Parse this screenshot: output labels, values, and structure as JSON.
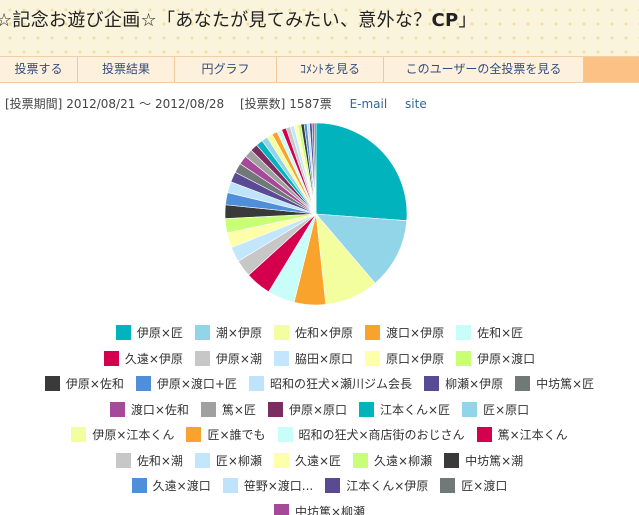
{
  "page_title_pre": "☆記念お遊び企画☆「あなたが見てみたい、意外な？",
  "page_title_bold": "CP",
  "page_title_post": "」",
  "tabs": [
    {
      "label": "投票する",
      "name": "tab-vote"
    },
    {
      "label": "投票結果",
      "name": "tab-results"
    },
    {
      "label": "円グラフ",
      "name": "tab-pie-chart"
    },
    {
      "label": "ｺﾒﾝﾄを見る",
      "name": "tab-comments"
    },
    {
      "label": "このユーザーの全投票を見る",
      "name": "tab-all-votes"
    }
  ],
  "info": {
    "period_label": "[投票期間]",
    "period_value": "2012/08/21 〜 2012/08/28",
    "count_label": "[投票数]",
    "count_value": "1587票",
    "email_link": "E-mail",
    "site_link": "site"
  },
  "chart_data": {
    "type": "pie",
    "title": "",
    "total": 1587,
    "slices": [
      {
        "label": "伊原×匠",
        "value": 412,
        "color": "#00b3bd"
      },
      {
        "label": "潮×伊原",
        "value": 198,
        "color": "#92d4e8"
      },
      {
        "label": "佐和×伊原",
        "value": 150,
        "color": "#f3ff9f"
      },
      {
        "label": "渡口×伊原",
        "value": 88,
        "color": "#faa32c"
      },
      {
        "label": "佐和×匠",
        "value": 76,
        "color": "#c8fdf9"
      },
      {
        "label": "久遠×伊原",
        "value": 72,
        "color": "#d4004e"
      },
      {
        "label": "伊原×潮",
        "value": 48,
        "color": "#c7c7c7"
      },
      {
        "label": "脇田×原口",
        "value": 42,
        "color": "#c2e6fb"
      },
      {
        "label": "原口×伊原",
        "value": 42,
        "color": "#fdffa9"
      },
      {
        "label": "伊原×渡口",
        "value": 40,
        "color": "#c9ff76"
      },
      {
        "label": "伊原×佐和",
        "value": 38,
        "color": "#3a3a3a"
      },
      {
        "label": "伊原×渡口+匠",
        "value": 34,
        "color": "#4f8fd9"
      },
      {
        "label": "昭和の狂犬×瀬川ジム会長",
        "value": 31,
        "color": "#bfe3fb"
      },
      {
        "label": "柳瀬×伊原",
        "value": 29,
        "color": "#5a4a93"
      },
      {
        "label": "中坊篤×匠",
        "value": 27,
        "color": "#707878"
      },
      {
        "label": "渡口×佐和",
        "value": 25,
        "color": "#a44a99"
      },
      {
        "label": "篤×匠",
        "value": 23,
        "color": "#a0a0a0"
      },
      {
        "label": "伊原×原口",
        "value": 21,
        "color": "#7c2c60"
      },
      {
        "label": "江本くん×匠",
        "value": 19,
        "color": "#00b3bd"
      },
      {
        "label": "匠×原口",
        "value": 17,
        "color": "#92d4e8"
      },
      {
        "label": "伊原×江本くん",
        "value": 16,
        "color": "#f3ff9f"
      },
      {
        "label": "匠×誰でも",
        "value": 15,
        "color": "#faa32c"
      },
      {
        "label": "昭和の狂犬×商店街のおじさん",
        "value": 14,
        "color": "#c8fdf9"
      },
      {
        "label": "篤×江本くん",
        "value": 13,
        "color": "#d4004e"
      },
      {
        "label": "佐和×潮",
        "value": 12,
        "color": "#c7c7c7"
      },
      {
        "label": "匠×柳瀬",
        "value": 11,
        "color": "#c2e6fb"
      },
      {
        "label": "久遠×匠",
        "value": 10,
        "color": "#fdffa9"
      },
      {
        "label": "久遠×柳瀬",
        "value": 9,
        "color": "#c9ff76"
      },
      {
        "label": "中坊篤×潮",
        "value": 9,
        "color": "#3a3a3a"
      },
      {
        "label": "久遠×渡口",
        "value": 8,
        "color": "#4f8fd9"
      },
      {
        "label": "笹野×渡口...",
        "value": 7,
        "color": "#bfe3fb"
      },
      {
        "label": "江本くん×伊原",
        "value": 7,
        "color": "#5a4a93"
      },
      {
        "label": "匠×渡口",
        "value": 6,
        "color": "#707878"
      },
      {
        "label": "中坊篤×柳瀬",
        "value": 5,
        "color": "#a44a99"
      }
    ]
  }
}
